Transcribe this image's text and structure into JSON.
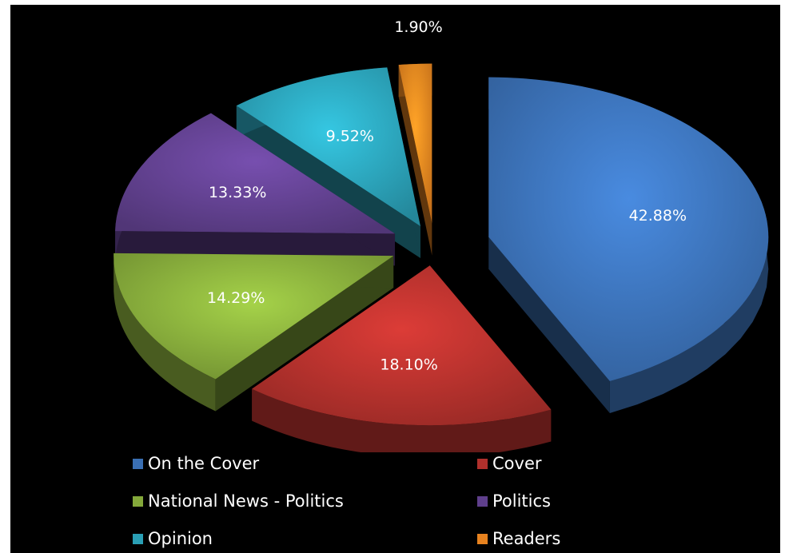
{
  "chart_data": {
    "type": "pie",
    "style": "3d-exploded",
    "background": "#000000",
    "legend_position": "bottom",
    "slices": [
      {
        "name": "On the Cover",
        "value": 42.88,
        "label": "42.88%",
        "color": "#3a6fb3"
      },
      {
        "name": "Cover",
        "value": 18.1,
        "label": "18.10%",
        "color": "#b0302c"
      },
      {
        "name": "National News - Politics",
        "value": 14.29,
        "label": "14.29%",
        "color": "#84a83a"
      },
      {
        "name": "Politics",
        "value": 13.33,
        "label": "13.33%",
        "color": "#5f3f8c"
      },
      {
        "name": "Opinion",
        "value": 9.52,
        "label": "9.52%",
        "color": "#2a9fb5"
      },
      {
        "name": "Readers",
        "value": 1.9,
        "label": "1.90%",
        "color": "#e7821f"
      }
    ]
  }
}
